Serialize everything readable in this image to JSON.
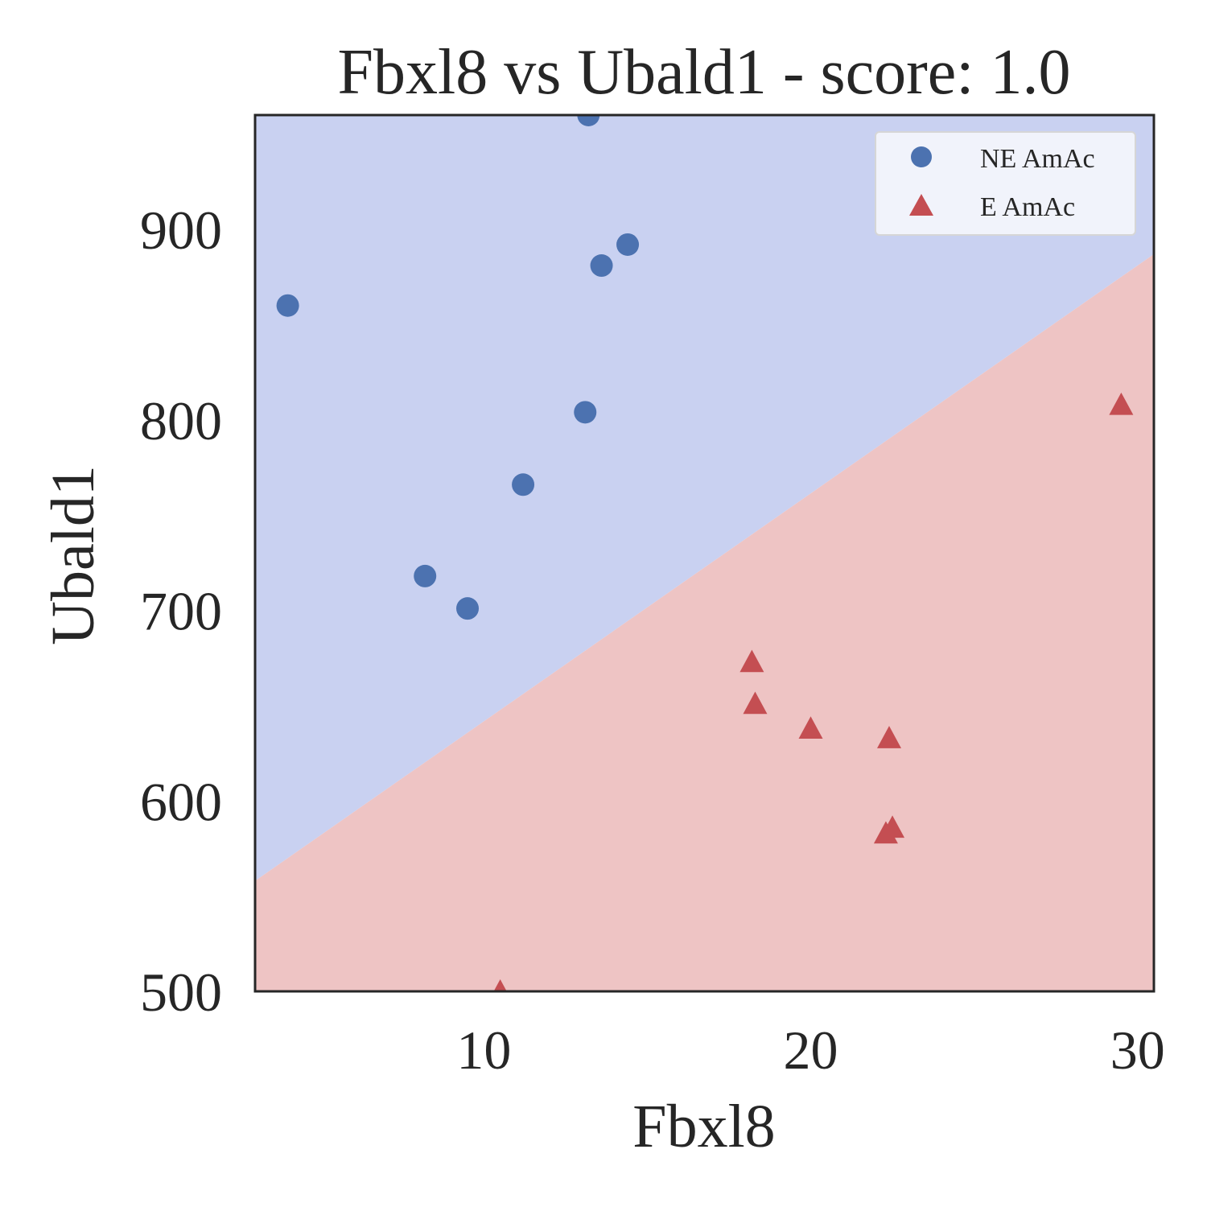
{
  "chart_data": {
    "type": "scatter",
    "title": "Fbxl8 vs Ubald1 - score: 1.0",
    "xlabel": "Fbxl8",
    "ylabel": "Ubald1",
    "xlim": [
      3.0,
      30.5
    ],
    "ylim": [
      500,
      960
    ],
    "xticks": [
      10,
      20,
      30
    ],
    "yticks": [
      500,
      600,
      700,
      800,
      900
    ],
    "grid": false,
    "legend_position": "top-right",
    "decision_boundary": {
      "line": [
        [
          3.0,
          558
        ],
        [
          30.5,
          887
        ]
      ],
      "upper_region_class": "NE AmAc",
      "lower_region_class": "E AmAc",
      "upper_color": "#c9d1f1",
      "lower_color": "#eec4c4"
    },
    "series": [
      {
        "name": "NE AmAc",
        "marker": "circle",
        "color": "#4c72b0",
        "points": [
          [
            4.0,
            860
          ],
          [
            8.2,
            718
          ],
          [
            9.5,
            701
          ],
          [
            11.2,
            766
          ],
          [
            13.1,
            804
          ],
          [
            13.2,
            960
          ],
          [
            13.6,
            881
          ],
          [
            14.4,
            892
          ]
        ]
      },
      {
        "name": "E AmAc",
        "marker": "triangle",
        "color": "#c44e52",
        "points": [
          [
            10.5,
            500
          ],
          [
            18.2,
            673
          ],
          [
            18.3,
            651
          ],
          [
            20.0,
            638
          ],
          [
            22.3,
            583
          ],
          [
            22.4,
            633
          ],
          [
            22.5,
            586
          ],
          [
            29.5,
            808
          ]
        ]
      }
    ]
  }
}
